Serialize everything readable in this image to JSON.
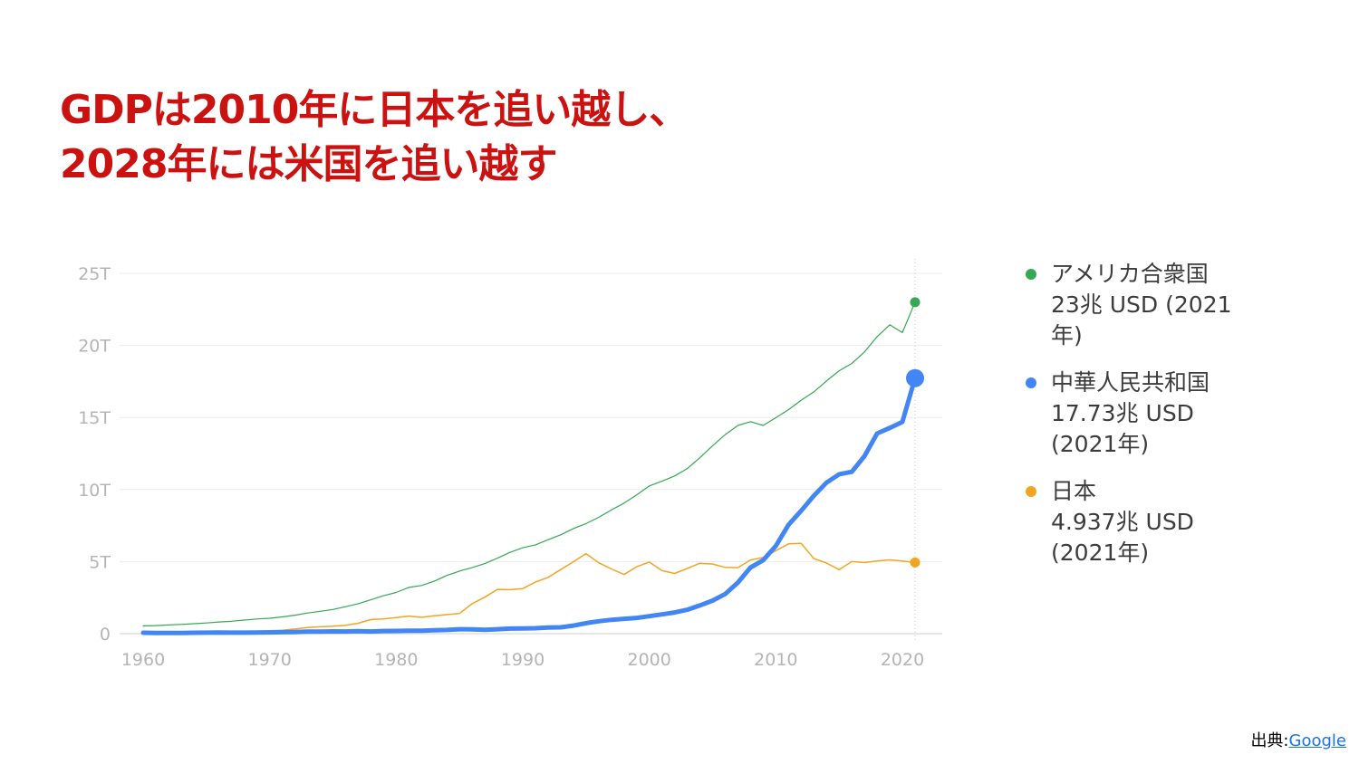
{
  "title": {
    "line1": "GDPは2010年に日本を追い越し、",
    "line2": "2028年には米国を追い越す"
  },
  "source": {
    "label": "出典:",
    "link": "Google"
  },
  "legend": [
    {
      "name": "アメリカ合衆国",
      "value": "23兆 USD (2021年)",
      "color": "#34a853"
    },
    {
      "name": "中華人民共和国",
      "value": "17.73兆 USD (2021年)",
      "color": "#4285f4"
    },
    {
      "name": "日本",
      "value": "4.937兆 USD (2021年)",
      "color": "#f2a522"
    }
  ],
  "chart_data": {
    "type": "line",
    "x": [
      1960,
      1961,
      1962,
      1963,
      1964,
      1965,
      1966,
      1967,
      1968,
      1969,
      1970,
      1971,
      1972,
      1973,
      1974,
      1975,
      1976,
      1977,
      1978,
      1979,
      1980,
      1981,
      1982,
      1983,
      1984,
      1985,
      1986,
      1987,
      1988,
      1989,
      1990,
      1991,
      1992,
      1993,
      1994,
      1995,
      1996,
      1997,
      1998,
      1999,
      2000,
      2001,
      2002,
      2003,
      2004,
      2005,
      2006,
      2007,
      2008,
      2009,
      2010,
      2011,
      2012,
      2013,
      2014,
      2015,
      2016,
      2017,
      2018,
      2019,
      2020,
      2021
    ],
    "xticks": [
      "1960",
      "1970",
      "1980",
      "1990",
      "2000",
      "2010",
      "2020"
    ],
    "xtick_values": [
      1960,
      1970,
      1980,
      1990,
      2000,
      2010,
      2020
    ],
    "yticks": [
      "0",
      "5T",
      "10T",
      "15T",
      "20T",
      "25T"
    ],
    "ytick_values": [
      0,
      5,
      10,
      15,
      20,
      25
    ],
    "ylim": [
      0,
      25
    ],
    "xlim": [
      1960,
      2021
    ],
    "grid": true,
    "legend_position": "right",
    "series": [
      {
        "name": "アメリカ合衆国",
        "color": "#34a853",
        "width": 1.2,
        "values": [
          0.54,
          0.56,
          0.6,
          0.64,
          0.69,
          0.74,
          0.81,
          0.86,
          0.94,
          1.02,
          1.07,
          1.16,
          1.28,
          1.43,
          1.55,
          1.68,
          1.87,
          2.08,
          2.35,
          2.63,
          2.86,
          3.21,
          3.34,
          3.64,
          4.04,
          4.34,
          4.58,
          4.86,
          5.24,
          5.64,
          5.96,
          6.16,
          6.52,
          6.86,
          7.29,
          7.64,
          8.07,
          8.58,
          9.06,
          9.63,
          10.25,
          10.58,
          10.94,
          11.46,
          12.21,
          13.04,
          13.81,
          14.45,
          14.71,
          14.45,
          14.99,
          15.54,
          16.2,
          16.78,
          17.53,
          18.24,
          18.75,
          19.54,
          20.61,
          21.43,
          20.89,
          23.0
        ]
      },
      {
        "name": "中華人民共和国",
        "color": "#4285f4",
        "width": 5,
        "values": [
          0.06,
          0.05,
          0.05,
          0.05,
          0.06,
          0.07,
          0.08,
          0.07,
          0.07,
          0.08,
          0.09,
          0.1,
          0.11,
          0.14,
          0.14,
          0.16,
          0.15,
          0.17,
          0.15,
          0.18,
          0.19,
          0.2,
          0.21,
          0.23,
          0.26,
          0.31,
          0.3,
          0.27,
          0.31,
          0.35,
          0.36,
          0.38,
          0.43,
          0.44,
          0.56,
          0.73,
          0.86,
          0.96,
          1.03,
          1.09,
          1.21,
          1.34,
          1.47,
          1.66,
          1.96,
          2.29,
          2.75,
          3.55,
          4.59,
          5.1,
          6.09,
          7.55,
          8.53,
          9.57,
          10.48,
          11.06,
          11.23,
          12.31,
          13.89,
          14.28,
          14.69,
          17.73
        ]
      },
      {
        "name": "日本",
        "color": "#f2a522",
        "width": 1.5,
        "values": [
          0.04,
          0.05,
          0.06,
          0.07,
          0.08,
          0.09,
          0.1,
          0.12,
          0.15,
          0.17,
          0.21,
          0.24,
          0.32,
          0.43,
          0.48,
          0.52,
          0.58,
          0.72,
          0.98,
          1.02,
          1.11,
          1.22,
          1.13,
          1.24,
          1.32,
          1.4,
          2.08,
          2.53,
          3.07,
          3.05,
          3.13,
          3.58,
          3.91,
          4.45,
          4.99,
          5.55,
          4.92,
          4.49,
          4.1,
          4.64,
          4.97,
          4.37,
          4.18,
          4.52,
          4.89,
          4.83,
          4.6,
          4.58,
          5.11,
          5.29,
          5.76,
          6.23,
          6.27,
          5.21,
          4.9,
          4.44,
          5.0,
          4.93,
          5.04,
          5.12,
          5.04,
          4.94
        ]
      }
    ],
    "endpoint_markers": true
  }
}
